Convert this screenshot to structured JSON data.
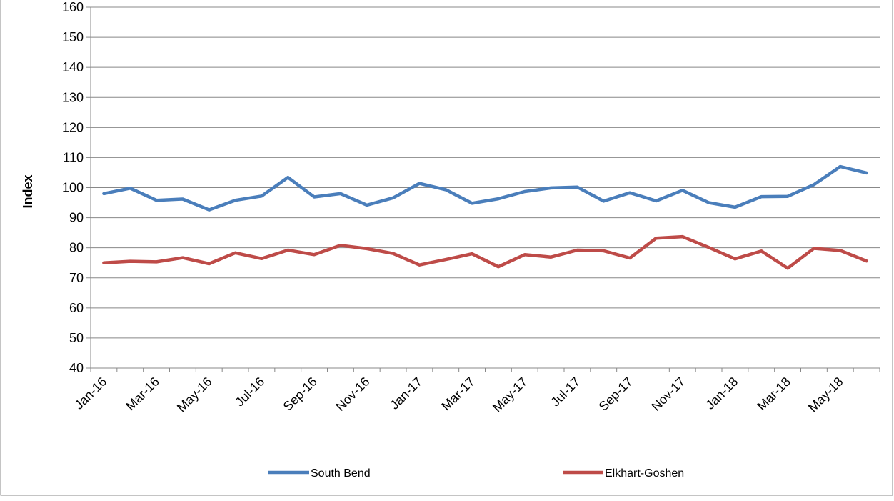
{
  "chart_data": {
    "type": "line",
    "title": "",
    "xlabel": "",
    "ylabel": "Index",
    "ylim": [
      40,
      160
    ],
    "y_ticks": [
      40,
      50,
      60,
      70,
      80,
      90,
      100,
      110,
      120,
      130,
      140,
      150,
      160
    ],
    "grid": "horizontal",
    "legend_position": "bottom",
    "x": [
      "Jan-16",
      "Feb-16",
      "Mar-16",
      "Apr-16",
      "May-16",
      "Jun-16",
      "Jul-16",
      "Aug-16",
      "Sep-16",
      "Oct-16",
      "Nov-16",
      "Dec-16",
      "Jan-17",
      "Feb-17",
      "Mar-17",
      "Apr-17",
      "May-17",
      "Jun-17",
      "Jul-17",
      "Aug-17",
      "Sep-17",
      "Oct-17",
      "Nov-17",
      "Dec-17",
      "Jan-18",
      "Feb-18",
      "Mar-18",
      "Apr-18",
      "May-18",
      "Jun-18"
    ],
    "x_tick_labels": [
      "Jan-16",
      "Mar-16",
      "May-16",
      "Jul-16",
      "Sep-16",
      "Nov-16",
      "Jan-17",
      "Mar-17",
      "May-17",
      "Jul-17",
      "Sep-17",
      "Nov-17",
      "Jan-18",
      "Mar-18",
      "May-18"
    ],
    "series": [
      {
        "name": "South Bend",
        "color": "#4a7ebb",
        "values": [
          98.0,
          99.8,
          95.8,
          96.2,
          92.6,
          95.8,
          97.2,
          103.4,
          96.9,
          98.0,
          94.2,
          96.6,
          101.4,
          99.3,
          94.8,
          96.3,
          98.7,
          99.9,
          100.2,
          95.5,
          98.3,
          95.6,
          99.1,
          95.0,
          93.5,
          97.0,
          97.1,
          101.0,
          107.0,
          104.9
        ]
      },
      {
        "name": "Elkhart-Goshen",
        "color": "#be4b48",
        "values": [
          75.0,
          75.5,
          75.3,
          76.7,
          74.7,
          78.3,
          76.4,
          79.2,
          77.7,
          80.8,
          79.7,
          78.1,
          74.3,
          76.1,
          78.0,
          73.7,
          77.7,
          76.9,
          79.2,
          79.0,
          76.6,
          83.2,
          83.7,
          80.1,
          76.3,
          78.9,
          73.2,
          79.8,
          79.1,
          75.6
        ]
      }
    ]
  }
}
